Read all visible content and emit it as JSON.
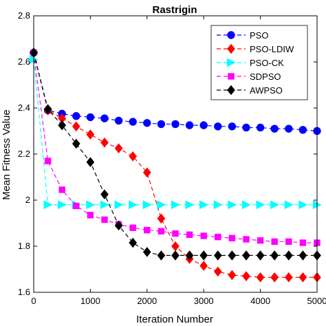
{
  "chart_data": {
    "type": "line",
    "title": "Rastrigin",
    "xlabel": "Iteration Number",
    "ylabel": "Mean Fitness Value",
    "xlim": [
      0,
      5000
    ],
    "ylim": [
      1.6,
      2.8
    ],
    "xticks": [
      0,
      1000,
      2000,
      3000,
      4000,
      5000
    ],
    "yticks": [
      1.6,
      1.8,
      2,
      2.2,
      2.4,
      2.6,
      2.8
    ],
    "grid": false,
    "legend_position": "top-right",
    "series": [
      {
        "name": "PSO",
        "color": "#0000ff",
        "marker": "circle",
        "x": [
          0,
          250,
          500,
          750,
          1000,
          1250,
          1500,
          1750,
          2000,
          2250,
          2500,
          2750,
          3000,
          3250,
          3500,
          3750,
          4000,
          4250,
          4500,
          4750,
          5000
        ],
        "y": [
          2.64,
          2.39,
          2.375,
          2.365,
          2.36,
          2.355,
          2.345,
          2.34,
          2.335,
          2.33,
          2.33,
          2.325,
          2.325,
          2.32,
          2.32,
          2.315,
          2.315,
          2.31,
          2.31,
          2.305,
          2.3
        ]
      },
      {
        "name": "PSO-LDIW",
        "color": "#ff0000",
        "marker": "diamond",
        "x": [
          0,
          250,
          500,
          750,
          1000,
          1250,
          1500,
          1750,
          2000,
          2250,
          2500,
          2750,
          3000,
          3250,
          3500,
          3750,
          4000,
          4250,
          4500,
          4750,
          5000
        ],
        "y": [
          2.64,
          2.39,
          2.355,
          2.32,
          2.285,
          2.25,
          2.225,
          2.19,
          2.12,
          1.92,
          1.8,
          1.745,
          1.715,
          1.69,
          1.675,
          1.67,
          1.665,
          1.665,
          1.665,
          1.665,
          1.665
        ]
      },
      {
        "name": "PSO-CK",
        "color": "#00ffff",
        "marker": "triangle-right",
        "x": [
          0,
          250,
          500,
          750,
          1000,
          1250,
          1500,
          1750,
          2000,
          2250,
          2500,
          2750,
          3000,
          3250,
          3500,
          3750,
          4000,
          4250,
          4500,
          4750,
          5000
        ],
        "y": [
          2.61,
          1.98,
          1.98,
          1.98,
          1.98,
          1.98,
          1.98,
          1.98,
          1.98,
          1.98,
          1.98,
          1.98,
          1.98,
          1.98,
          1.98,
          1.98,
          1.98,
          1.98,
          1.98,
          1.98,
          1.98
        ]
      },
      {
        "name": "SDPSO",
        "color": "#ff00ff",
        "marker": "square",
        "x": [
          0,
          250,
          500,
          750,
          1000,
          1250,
          1500,
          1750,
          2000,
          2250,
          2500,
          2750,
          3000,
          3250,
          3500,
          3750,
          4000,
          4250,
          4500,
          4750,
          5000
        ],
        "y": [
          2.64,
          2.17,
          2.045,
          1.975,
          1.935,
          1.915,
          1.895,
          1.88,
          1.87,
          1.865,
          1.855,
          1.85,
          1.845,
          1.84,
          1.835,
          1.83,
          1.825,
          1.82,
          1.82,
          1.815,
          1.815
        ]
      },
      {
        "name": "AWPSO",
        "color": "#000000",
        "marker": "diamond",
        "x": [
          0,
          250,
          500,
          750,
          1000,
          1250,
          1500,
          1750,
          2000,
          2250,
          2500,
          2750,
          3000,
          3250,
          3500,
          3750,
          4000,
          4250,
          4500,
          4750,
          5000
        ],
        "y": [
          2.64,
          2.395,
          2.325,
          2.245,
          2.165,
          2.025,
          1.89,
          1.815,
          1.775,
          1.76,
          1.76,
          1.76,
          1.76,
          1.76,
          1.76,
          1.76,
          1.76,
          1.76,
          1.76,
          1.76,
          1.76
        ]
      }
    ]
  }
}
